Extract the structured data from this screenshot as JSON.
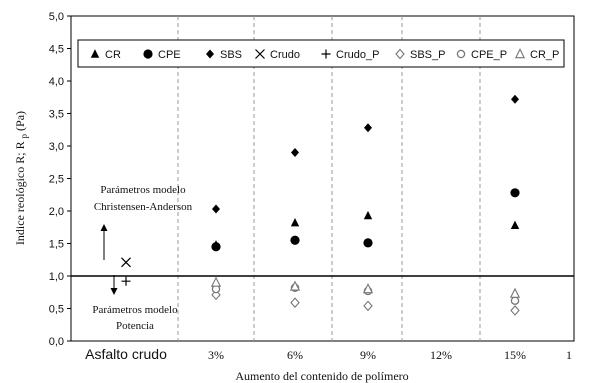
{
  "chart_data": {
    "type": "scatter",
    "xlabel": "Aumento del contenido de polímero",
    "ylabel_main": "Indice reológico R; R",
    "ylabel_sub": "p",
    "ylabel_unit": "(Pa)",
    "ylim": [
      0,
      5
    ],
    "ystep": 0.5,
    "yticks": [
      "0,0",
      "0,5",
      "1,0",
      "1,5",
      "2,0",
      "2,5",
      "3,0",
      "3,5",
      "4,0",
      "4,5",
      "5,0"
    ],
    "categories": [
      "Asfalto crudo",
      "3%",
      "6%",
      "9%",
      "12%",
      "15%",
      ""
    ],
    "category_labels_visible": [
      "Asfalto crudo",
      "3%",
      "6%",
      "9%",
      "12%",
      "15%",
      "1"
    ],
    "reference_line": 1.0,
    "grid": "vertical-dashed",
    "legend_position": "top",
    "series": [
      {
        "name": "CR",
        "marker": "triangle-filled",
        "points": [
          [
            "3%",
            1.48
          ],
          [
            "6%",
            1.82
          ],
          [
            "9%",
            1.93
          ],
          [
            "15%",
            1.78
          ]
        ]
      },
      {
        "name": "CPE",
        "marker": "circle-filled",
        "points": [
          [
            "3%",
            1.45
          ],
          [
            "6%",
            1.55
          ],
          [
            "9%",
            1.51
          ],
          [
            "15%",
            2.28
          ]
        ]
      },
      {
        "name": "SBS",
        "marker": "diamond-filled",
        "points": [
          [
            "3%",
            2.03
          ],
          [
            "6%",
            2.9
          ],
          [
            "9%",
            3.28
          ],
          [
            "15%",
            3.72
          ]
        ]
      },
      {
        "name": "Crudo",
        "marker": "x",
        "points": [
          [
            "Asfalto crudo",
            1.21
          ]
        ]
      },
      {
        "name": "Crudo_P",
        "marker": "plus",
        "points": [
          [
            "Asfalto crudo",
            0.92
          ]
        ]
      },
      {
        "name": "SBS_P",
        "marker": "diamond-open",
        "points": [
          [
            "3%",
            0.71
          ],
          [
            "6%",
            0.59
          ],
          [
            "9%",
            0.54
          ],
          [
            "15%",
            0.47
          ]
        ]
      },
      {
        "name": "CPE_P",
        "marker": "circle-open",
        "points": [
          [
            "3%",
            0.8
          ],
          [
            "6%",
            0.82
          ],
          [
            "9%",
            0.77
          ],
          [
            "15%",
            0.62
          ]
        ]
      },
      {
        "name": "CR_P",
        "marker": "triangle-open",
        "points": [
          [
            "3%",
            0.9
          ],
          [
            "6%",
            0.84
          ],
          [
            "9%",
            0.8
          ],
          [
            "15%",
            0.73
          ]
        ]
      }
    ],
    "annotations": {
      "upper_line1": "Parámetros modelo",
      "upper_line2": "Christensen-Anderson",
      "lower_line1": "Parámetros modelo",
      "lower_line2": "Potencia"
    }
  }
}
